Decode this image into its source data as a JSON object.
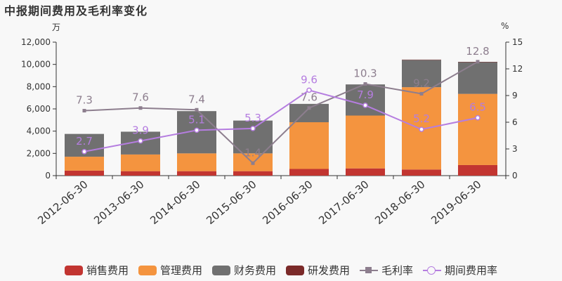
{
  "title": "中报期间费用及毛利率变化",
  "left_unit": "万",
  "right_unit": "%",
  "chart_data": {
    "type": "bar",
    "stacked": true,
    "categories": [
      "2012-06-30",
      "2013-06-30",
      "2014-06-30",
      "2015-06-30",
      "2016-06-30",
      "2017-06-30",
      "2018-06-30",
      "2019-06-30"
    ],
    "y_left": {
      "ylim": [
        0,
        12000
      ],
      "ticks": [
        "0",
        "2,000",
        "4,000",
        "6,000",
        "8,000",
        "10,000",
        "12,000"
      ]
    },
    "y_right": {
      "ylim": [
        0,
        15
      ],
      "ticks": [
        "0",
        "3",
        "6",
        "9",
        "12",
        "15"
      ]
    },
    "bar_series": [
      {
        "name": "销售费用",
        "color": "#c23531",
        "values": [
          450,
          400,
          400,
          400,
          600,
          650,
          550,
          950
        ]
      },
      {
        "name": "管理费用",
        "color": "#f4943f",
        "values": [
          1250,
          1500,
          1600,
          1600,
          4200,
          4750,
          7400,
          6400
        ]
      },
      {
        "name": "财务费用",
        "color": "#707070",
        "values": [
          2050,
          2050,
          3800,
          2950,
          1650,
          2800,
          2450,
          2850
        ]
      },
      {
        "name": "研发费用",
        "color": "#7b2a29",
        "values": [
          0,
          0,
          0,
          0,
          0,
          0,
          30,
          30
        ]
      }
    ],
    "line_series": [
      {
        "name": "毛利率",
        "color": "#8d7e8e",
        "marker": "square",
        "axis": "right",
        "values": [
          7.3,
          7.6,
          7.4,
          1.4,
          7.6,
          10.3,
          9.2,
          12.8
        ],
        "labels": [
          "7.3",
          "7.6",
          "7.4",
          "1.4",
          "7.6",
          "10.3",
          "9.2",
          "12.8"
        ]
      },
      {
        "name": "期间费用率",
        "color": "#b57de0",
        "marker": "circle",
        "axis": "right",
        "values": [
          2.7,
          3.9,
          5.1,
          5.3,
          9.6,
          7.9,
          5.2,
          6.5
        ],
        "labels": [
          "2.7",
          "3.9",
          "5.1",
          "5.3",
          "9.6",
          "7.9",
          "5.2",
          "6.5"
        ]
      }
    ],
    "legend_position": "bottom",
    "grid": false
  }
}
